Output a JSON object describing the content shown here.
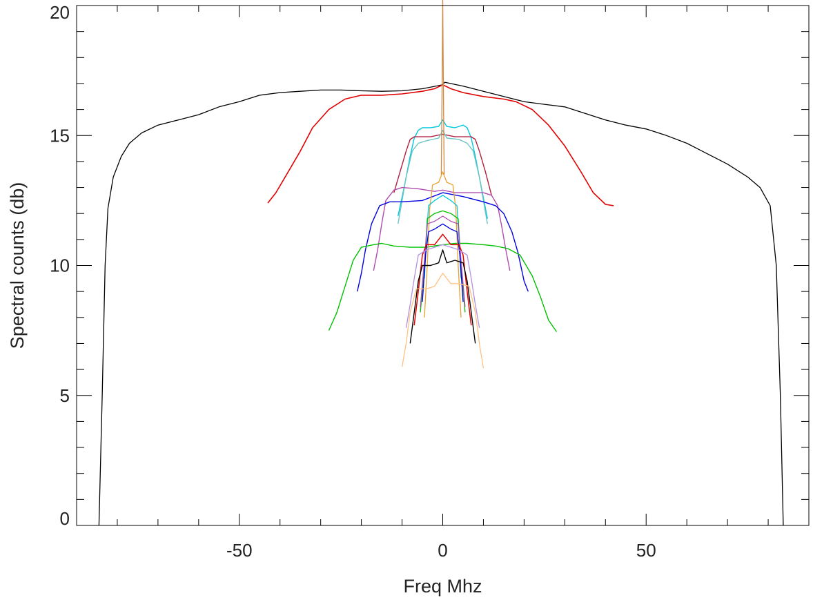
{
  "chart_data": {
    "type": "line",
    "title": "",
    "xlabel": "Freq Mhz",
    "ylabel": "Spectral counts (db)",
    "xlim": [
      -90,
      90
    ],
    "ylim": [
      0,
      20
    ],
    "x_ticks": [
      -50,
      0,
      50
    ],
    "x_tick_labels": [
      "-50",
      "0",
      "50"
    ],
    "y_ticks": [
      0,
      5,
      10,
      15,
      20
    ],
    "y_tick_labels": [
      "0",
      "5",
      "10",
      "15",
      "20"
    ],
    "x_minor_step": 10,
    "y_minor_step": 1,
    "grid": false,
    "legend": "none",
    "series": [
      {
        "color": "#000000",
        "width": 1.3,
        "points": [
          [
            -84.5,
            0
          ],
          [
            -83.7,
            5
          ],
          [
            -83,
            10
          ],
          [
            -82.3,
            12.2
          ],
          [
            -81,
            13.4
          ],
          [
            -79,
            14.2
          ],
          [
            -77,
            14.7
          ],
          [
            -74,
            15.1
          ],
          [
            -70,
            15.4
          ],
          [
            -65,
            15.6
          ],
          [
            -60,
            15.8
          ],
          [
            -55,
            16.1
          ],
          [
            -50,
            16.3
          ],
          [
            -45,
            16.55
          ],
          [
            -40,
            16.65
          ],
          [
            -35,
            16.7
          ],
          [
            -30,
            16.75
          ],
          [
            -25,
            16.75
          ],
          [
            -20,
            16.72
          ],
          [
            -15,
            16.7
          ],
          [
            -10,
            16.72
          ],
          [
            -5,
            16.8
          ],
          [
            0,
            16.95
          ],
          [
            0.5,
            17.05
          ],
          [
            5,
            16.9
          ],
          [
            10,
            16.7
          ],
          [
            15,
            16.5
          ],
          [
            20,
            16.3
          ],
          [
            25,
            16.2
          ],
          [
            30,
            16.1
          ],
          [
            35,
            15.85
          ],
          [
            40,
            15.6
          ],
          [
            45,
            15.4
          ],
          [
            50,
            15.25
          ],
          [
            55,
            15.0
          ],
          [
            60,
            14.7
          ],
          [
            65,
            14.3
          ],
          [
            70,
            13.9
          ],
          [
            75,
            13.4
          ],
          [
            78,
            13.0
          ],
          [
            80.5,
            12.3
          ],
          [
            82,
            10
          ],
          [
            83,
            5
          ],
          [
            83.7,
            0
          ]
        ]
      },
      {
        "color": "#e00000",
        "width": 1.6,
        "points": [
          [
            -43,
            12.4
          ],
          [
            -41,
            12.8
          ],
          [
            -38,
            13.6
          ],
          [
            -35,
            14.4
          ],
          [
            -32,
            15.3
          ],
          [
            -28,
            16.0
          ],
          [
            -24,
            16.4
          ],
          [
            -20,
            16.55
          ],
          [
            -15,
            16.55
          ],
          [
            -10,
            16.6
          ],
          [
            -5,
            16.7
          ],
          [
            -2,
            16.8
          ],
          [
            0,
            16.95
          ],
          [
            2,
            16.8
          ],
          [
            5,
            16.65
          ],
          [
            10,
            16.5
          ],
          [
            15,
            16.4
          ],
          [
            18,
            16.3
          ],
          [
            22,
            16.0
          ],
          [
            26,
            15.4
          ],
          [
            30,
            14.6
          ],
          [
            34,
            13.6
          ],
          [
            37,
            12.8
          ],
          [
            40,
            12.35
          ],
          [
            42,
            12.3
          ]
        ]
      },
      {
        "color": "#00c8e0",
        "width": 1.4,
        "points": [
          [
            -11,
            11.9
          ],
          [
            -9.5,
            13.0
          ],
          [
            -8,
            14.2
          ],
          [
            -7,
            14.9
          ],
          [
            -6,
            15.2
          ],
          [
            -5,
            15.3
          ],
          [
            -3,
            15.3
          ],
          [
            -1,
            15.35
          ],
          [
            0,
            15.6
          ],
          [
            1,
            15.35
          ],
          [
            3,
            15.3
          ],
          [
            5,
            15.4
          ],
          [
            6,
            15.3
          ],
          [
            7,
            14.9
          ],
          [
            8,
            14.2
          ],
          [
            9.5,
            13.0
          ],
          [
            11,
            11.8
          ]
        ]
      },
      {
        "color": "#b02040",
        "width": 1.4,
        "points": [
          [
            -12,
            12.8
          ],
          [
            -10.5,
            13.6
          ],
          [
            -9,
            14.4
          ],
          [
            -8,
            14.85
          ],
          [
            -7,
            14.95
          ],
          [
            -3,
            14.95
          ],
          [
            0,
            15.05
          ],
          [
            3,
            14.95
          ],
          [
            7,
            14.95
          ],
          [
            8,
            14.85
          ],
          [
            9,
            14.4
          ],
          [
            10.5,
            13.6
          ],
          [
            12,
            12.7
          ]
        ]
      },
      {
        "color": "#6cc4c4",
        "width": 1.4,
        "points": [
          [
            -11,
            11.6
          ],
          [
            -10,
            12.5
          ],
          [
            -9,
            13.4
          ],
          [
            -7.5,
            14.4
          ],
          [
            -6,
            14.7
          ],
          [
            -4,
            14.8
          ],
          [
            -1,
            14.9
          ],
          [
            0,
            15.2
          ],
          [
            1,
            14.9
          ],
          [
            4,
            14.85
          ],
          [
            6,
            14.7
          ],
          [
            7.5,
            14.4
          ],
          [
            9,
            13.4
          ],
          [
            10,
            12.5
          ],
          [
            11,
            11.6
          ]
        ]
      },
      {
        "color": "#b04ab0",
        "width": 1.4,
        "points": [
          [
            -17,
            9.8
          ],
          [
            -16,
            10.6
          ],
          [
            -15,
            11.6
          ],
          [
            -14,
            12.5
          ],
          [
            -12,
            12.9
          ],
          [
            -10,
            13.0
          ],
          [
            -6,
            12.95
          ],
          [
            -2,
            12.85
          ],
          [
            0,
            12.9
          ],
          [
            3,
            12.8
          ],
          [
            7,
            12.8
          ],
          [
            10,
            12.8
          ],
          [
            12,
            12.7
          ],
          [
            13.5,
            12.3
          ],
          [
            14.5,
            11.5
          ],
          [
            15.5,
            10.6
          ],
          [
            16.5,
            9.8
          ]
        ]
      },
      {
        "color": "#0000e0",
        "width": 1.4,
        "points": [
          [
            -21,
            9.0
          ],
          [
            -20,
            9.7
          ],
          [
            -19,
            10.6
          ],
          [
            -17.5,
            11.6
          ],
          [
            -15.5,
            12.3
          ],
          [
            -13,
            12.45
          ],
          [
            -10,
            12.45
          ],
          [
            -5,
            12.5
          ],
          [
            0,
            12.8
          ],
          [
            5,
            12.65
          ],
          [
            10,
            12.45
          ],
          [
            13,
            12.3
          ],
          [
            15,
            12.0
          ],
          [
            17,
            11.3
          ],
          [
            18.5,
            10.5
          ],
          [
            20,
            9.4
          ],
          [
            21,
            9.0
          ]
        ]
      },
      {
        "color": "#00c000",
        "width": 1.4,
        "points": [
          [
            -28,
            7.5
          ],
          [
            -26,
            8.2
          ],
          [
            -24,
            9.2
          ],
          [
            -22,
            10.2
          ],
          [
            -20,
            10.7
          ],
          [
            -17,
            10.8
          ],
          [
            -15,
            10.85
          ],
          [
            -12,
            10.75
          ],
          [
            -8,
            10.7
          ],
          [
            -4,
            10.7
          ],
          [
            0,
            10.8
          ],
          [
            3,
            10.85
          ],
          [
            6,
            10.85
          ],
          [
            10,
            10.8
          ],
          [
            13,
            10.75
          ],
          [
            16,
            10.65
          ],
          [
            19,
            10.4
          ],
          [
            22,
            9.6
          ],
          [
            24,
            8.8
          ],
          [
            26,
            7.9
          ],
          [
            28,
            7.45
          ]
        ]
      },
      {
        "color": "#e8a030",
        "width": 1.3,
        "points": [
          [
            -4.5,
            8.0
          ],
          [
            -3.8,
            10.0
          ],
          [
            -3.2,
            12.2
          ],
          [
            -2.5,
            13.1
          ],
          [
            -1,
            13.2
          ],
          [
            0,
            13.6
          ],
          [
            1,
            13.2
          ],
          [
            2.5,
            13.1
          ],
          [
            3.2,
            12.2
          ],
          [
            3.8,
            10.0
          ],
          [
            4.5,
            8.0
          ]
        ]
      },
      {
        "color": "#00c8e0",
        "width": 1.3,
        "points": [
          [
            -4.5,
            9.5
          ],
          [
            -4,
            11.0
          ],
          [
            -3.5,
            12.3
          ],
          [
            -2,
            12.5
          ],
          [
            0,
            12.7
          ],
          [
            2,
            12.5
          ],
          [
            3.5,
            12.3
          ],
          [
            4,
            11.0
          ],
          [
            4.5,
            9.5
          ]
        ]
      },
      {
        "color": "#00c000",
        "width": 1.3,
        "points": [
          [
            -5.5,
            8.2
          ],
          [
            -4.5,
            10.0
          ],
          [
            -3.8,
            11.8
          ],
          [
            -2,
            12.0
          ],
          [
            0,
            12.1
          ],
          [
            2,
            12.0
          ],
          [
            3.8,
            11.8
          ],
          [
            4.5,
            10.0
          ],
          [
            5.5,
            8.2
          ]
        ]
      },
      {
        "color": "#b04ab0",
        "width": 1.3,
        "points": [
          [
            -5.5,
            8.4
          ],
          [
            -4.5,
            10.2
          ],
          [
            -3.8,
            11.6
          ],
          [
            -2,
            11.7
          ],
          [
            0,
            11.9
          ],
          [
            2,
            11.7
          ],
          [
            3.8,
            11.6
          ],
          [
            4.5,
            10.2
          ],
          [
            5.5,
            8.4
          ]
        ]
      },
      {
        "color": "#0000e0",
        "width": 1.3,
        "points": [
          [
            -5,
            8.6
          ],
          [
            -4.2,
            10.4
          ],
          [
            -3.5,
            11.3
          ],
          [
            -2,
            11.4
          ],
          [
            0,
            11.6
          ],
          [
            2,
            11.4
          ],
          [
            3.5,
            11.3
          ],
          [
            4.2,
            10.4
          ],
          [
            5,
            8.6
          ]
        ]
      },
      {
        "color": "#e00000",
        "width": 1.5,
        "points": [
          [
            -7,
            7.7
          ],
          [
            -6,
            9.0
          ],
          [
            -5,
            10.4
          ],
          [
            -4,
            10.8
          ],
          [
            -2,
            10.8
          ],
          [
            0,
            11.2
          ],
          [
            2,
            10.8
          ],
          [
            4,
            10.8
          ],
          [
            5,
            10.4
          ],
          [
            6,
            9.0
          ],
          [
            7,
            7.7
          ]
        ]
      },
      {
        "color": "#b090e0",
        "width": 1.3,
        "points": [
          [
            -9,
            7.6
          ],
          [
            -8,
            8.5
          ],
          [
            -7,
            9.5
          ],
          [
            -6,
            10.4
          ],
          [
            -4,
            10.6
          ],
          [
            -2,
            10.7
          ],
          [
            0,
            10.8
          ],
          [
            2,
            10.7
          ],
          [
            4,
            10.6
          ],
          [
            6,
            10.4
          ],
          [
            7,
            9.5
          ],
          [
            8,
            8.5
          ],
          [
            9,
            7.6
          ]
        ]
      },
      {
        "color": "#000000",
        "width": 1.4,
        "points": [
          [
            -8,
            7.0
          ],
          [
            -7,
            8.2
          ],
          [
            -6,
            9.4
          ],
          [
            -5,
            10.0
          ],
          [
            -3,
            10.0
          ],
          [
            -1,
            10.1
          ],
          [
            0,
            10.6
          ],
          [
            1,
            10.1
          ],
          [
            3,
            10.2
          ],
          [
            5,
            10.1
          ],
          [
            6,
            9.4
          ],
          [
            7,
            8.2
          ],
          [
            8,
            7.0
          ]
        ]
      },
      {
        "color": "#ffc080",
        "width": 1.3,
        "points": [
          [
            -10,
            6.1
          ],
          [
            -9,
            7.0
          ],
          [
            -8,
            8.2
          ],
          [
            -6.5,
            9.1
          ],
          [
            -4,
            9.1
          ],
          [
            -2,
            9.2
          ],
          [
            0,
            9.7
          ],
          [
            2,
            9.3
          ],
          [
            4,
            9.3
          ],
          [
            6.5,
            9.2
          ],
          [
            8,
            8.2
          ],
          [
            9,
            7.0
          ],
          [
            10,
            6.05
          ]
        ]
      },
      {
        "color": "#d08840",
        "width": 1.3,
        "points": [
          [
            -0.35,
            13.5
          ],
          [
            -0.15,
            17.0
          ],
          [
            0,
            20.2
          ],
          [
            0.15,
            17.0
          ],
          [
            0.35,
            13.5
          ]
        ]
      }
    ]
  }
}
